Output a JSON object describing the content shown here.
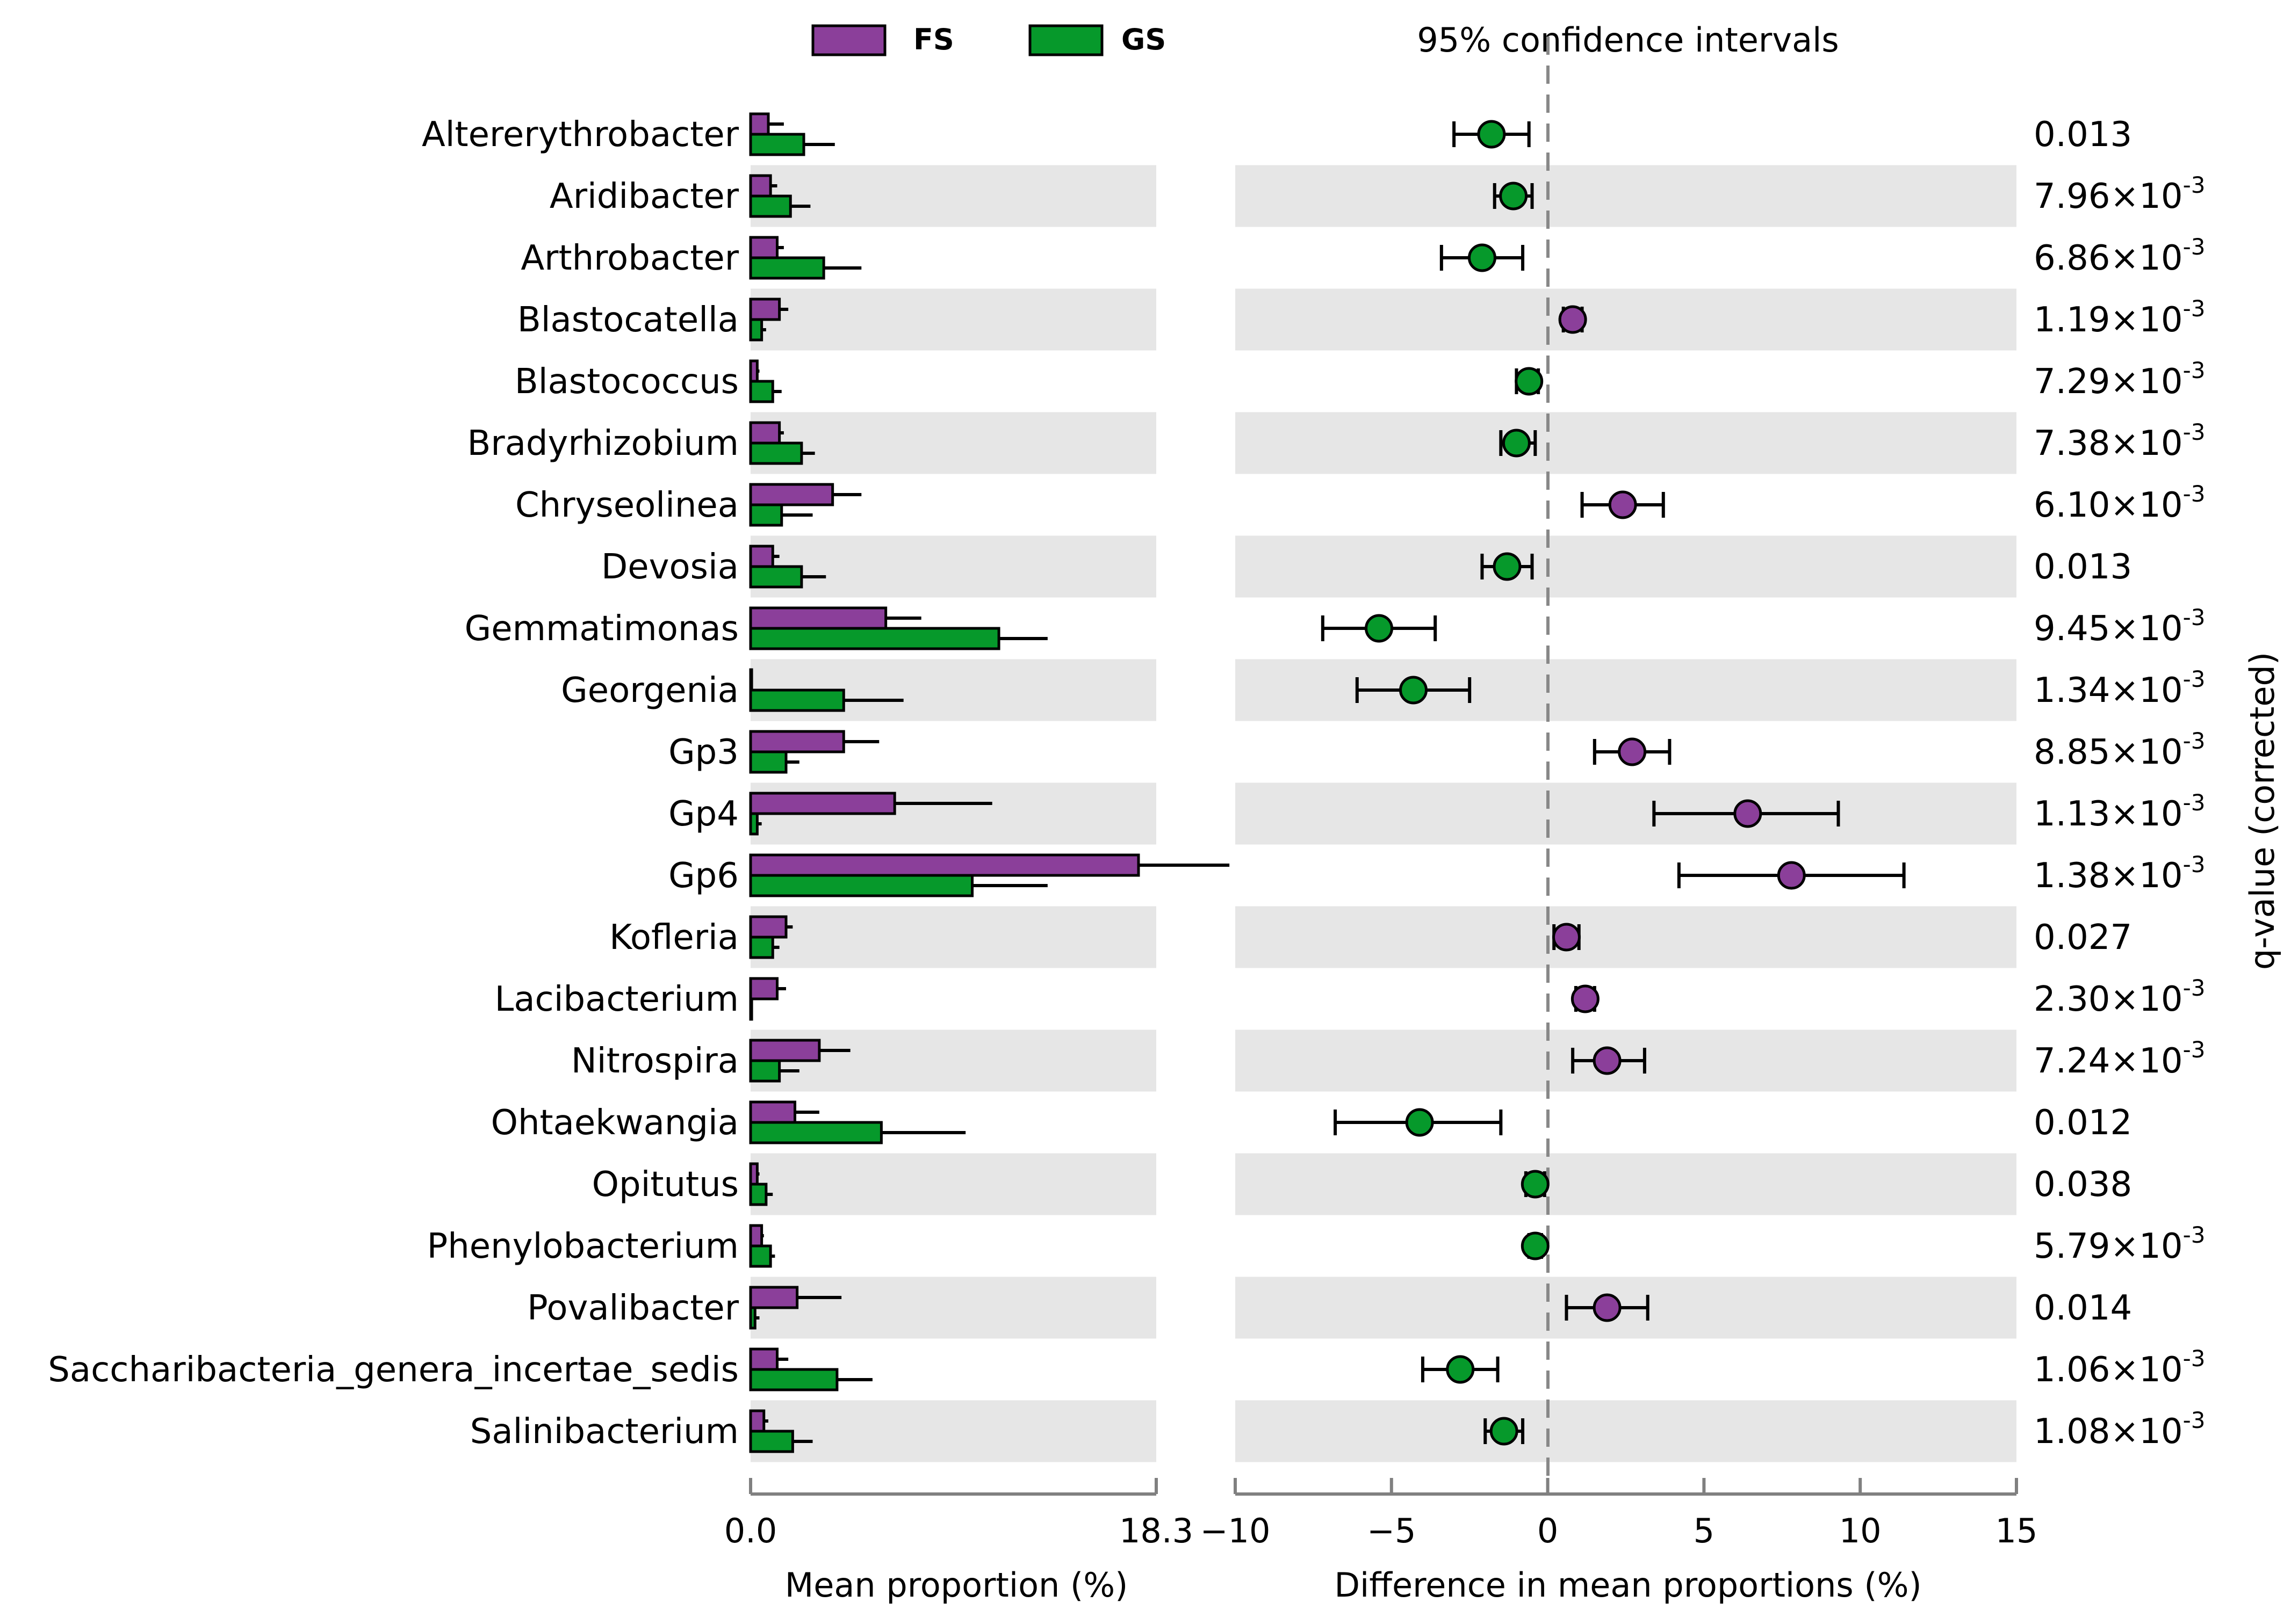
{
  "chart_data": {
    "type": "bar",
    "title": "95% confidence intervals",
    "legend": [
      {
        "name": "FS",
        "color": "#8B3F9A"
      },
      {
        "name": "GS",
        "color": "#06992B"
      }
    ],
    "bar_panel": {
      "xlabel": "Mean proportion (%)",
      "xlim": [
        0,
        18.3
      ],
      "tick_labels": [
        "0.0",
        "18.3"
      ]
    },
    "ci_panel": {
      "xlabel": "Difference in mean proportions (%)",
      "xlim": [
        -10,
        15
      ],
      "ticks": [
        -10,
        -5,
        0,
        5,
        10,
        15
      ],
      "tick_labels": [
        "−10",
        "−5",
        "0",
        "5",
        "10",
        "15"
      ]
    },
    "qvalue_label": "q-value (corrected)",
    "rows": [
      {
        "name": "Altererythrobacter",
        "fs": 0.8,
        "fs_err": 1.5,
        "gs": 2.4,
        "gs_err": 3.8,
        "diff": -1.8,
        "ci": [
          -3.0,
          -0.6
        ],
        "q_mant": "0.013",
        "q_exp": ""
      },
      {
        "name": "Aridibacter",
        "fs": 0.9,
        "fs_err": 1.2,
        "gs": 1.8,
        "gs_err": 2.7,
        "diff": -1.1,
        "ci": [
          -1.7,
          -0.5
        ],
        "q_mant": "7.96×10",
        "q_exp": "-3"
      },
      {
        "name": "Arthrobacter",
        "fs": 1.2,
        "fs_err": 1.5,
        "gs": 3.3,
        "gs_err": 5.0,
        "diff": -2.1,
        "ci": [
          -3.4,
          -0.8
        ],
        "q_mant": "6.86×10",
        "q_exp": "-3"
      },
      {
        "name": "Blastocatella",
        "fs": 1.3,
        "fs_err": 1.7,
        "gs": 0.5,
        "gs_err": 0.7,
        "diff": 0.8,
        "ci": [
          0.5,
          1.1
        ],
        "q_mant": "1.19×10",
        "q_exp": "-3"
      },
      {
        "name": "Blastococcus",
        "fs": 0.3,
        "fs_err": 0.4,
        "gs": 1.0,
        "gs_err": 1.4,
        "diff": -0.6,
        "ci": [
          -1.0,
          -0.3
        ],
        "q_mant": "7.29×10",
        "q_exp": "-3"
      },
      {
        "name": "Bradyrhizobium",
        "fs": 1.3,
        "fs_err": 1.5,
        "gs": 2.3,
        "gs_err": 2.9,
        "diff": -1.0,
        "ci": [
          -1.5,
          -0.4
        ],
        "q_mant": "7.38×10",
        "q_exp": "-3"
      },
      {
        "name": "Chryseolinea",
        "fs": 3.7,
        "fs_err": 5.0,
        "gs": 1.4,
        "gs_err": 2.8,
        "diff": 2.4,
        "ci": [
          1.1,
          3.7
        ],
        "q_mant": "6.10×10",
        "q_exp": "-3"
      },
      {
        "name": "Devosia",
        "fs": 1.0,
        "fs_err": 1.3,
        "gs": 2.3,
        "gs_err": 3.4,
        "diff": -1.3,
        "ci": [
          -2.1,
          -0.5
        ],
        "q_mant": "0.013",
        "q_exp": ""
      },
      {
        "name": "Gemmatimonas",
        "fs": 6.1,
        "fs_err": 7.7,
        "gs": 11.2,
        "gs_err": 13.4,
        "diff": -5.4,
        "ci": [
          -7.2,
          -3.6
        ],
        "q_mant": "9.45×10",
        "q_exp": "-3"
      },
      {
        "name": "Georgenia",
        "fs": 0.05,
        "fs_err": 0.1,
        "gs": 4.2,
        "gs_err": 6.9,
        "diff": -4.3,
        "ci": [
          -6.1,
          -2.5
        ],
        "q_mant": "1.34×10",
        "q_exp": "-3"
      },
      {
        "name": "Gp3",
        "fs": 4.2,
        "fs_err": 5.8,
        "gs": 1.6,
        "gs_err": 2.2,
        "diff": 2.7,
        "ci": [
          1.5,
          3.9
        ],
        "q_mant": "8.85×10",
        "q_exp": "-3"
      },
      {
        "name": "Gp4",
        "fs": 6.5,
        "fs_err": 10.9,
        "gs": 0.3,
        "gs_err": 0.5,
        "diff": 6.4,
        "ci": [
          3.4,
          9.3
        ],
        "q_mant": "1.13×10",
        "q_exp": "-3"
      },
      {
        "name": "Gp6",
        "fs": 17.5,
        "fs_err": 21.6,
        "gs": 10.0,
        "gs_err": 13.4,
        "diff": 7.8,
        "ci": [
          4.2,
          11.4
        ],
        "q_mant": "1.38×10",
        "q_exp": "-3"
      },
      {
        "name": "Kofleria",
        "fs": 1.6,
        "fs_err": 1.9,
        "gs": 1.0,
        "gs_err": 1.3,
        "diff": 0.6,
        "ci": [
          0.2,
          1.0
        ],
        "q_mant": "0.027",
        "q_exp": ""
      },
      {
        "name": "Lacibacterium",
        "fs": 1.2,
        "fs_err": 1.6,
        "gs": 0.05,
        "gs_err": 0.1,
        "diff": 1.2,
        "ci": [
          0.9,
          1.5
        ],
        "q_mant": "2.30×10",
        "q_exp": "-3"
      },
      {
        "name": "Nitrospira",
        "fs": 3.1,
        "fs_err": 4.5,
        "gs": 1.3,
        "gs_err": 2.2,
        "diff": 1.9,
        "ci": [
          0.8,
          3.1
        ],
        "q_mant": "7.24×10",
        "q_exp": "-3"
      },
      {
        "name": "Ohtaekwangia",
        "fs": 2.0,
        "fs_err": 3.1,
        "gs": 5.9,
        "gs_err": 9.7,
        "diff": -4.1,
        "ci": [
          -6.8,
          -1.5
        ],
        "q_mant": "0.012",
        "q_exp": ""
      },
      {
        "name": "Opitutus",
        "fs": 0.3,
        "fs_err": 0.4,
        "gs": 0.7,
        "gs_err": 1.0,
        "diff": -0.4,
        "ci": [
          -0.7,
          -0.1
        ],
        "q_mant": "0.038",
        "q_exp": ""
      },
      {
        "name": "Phenylobacterium",
        "fs": 0.5,
        "fs_err": 0.6,
        "gs": 0.9,
        "gs_err": 1.1,
        "diff": -0.4,
        "ci": [
          -0.6,
          -0.2
        ],
        "q_mant": "5.79×10",
        "q_exp": "-3"
      },
      {
        "name": "Povalibacter",
        "fs": 2.1,
        "fs_err": 4.1,
        "gs": 0.2,
        "gs_err": 0.4,
        "diff": 1.9,
        "ci": [
          0.6,
          3.2
        ],
        "q_mant": "0.014",
        "q_exp": ""
      },
      {
        "name": "Saccharibacteria_genera_incertae_sedis",
        "fs": 1.2,
        "fs_err": 1.7,
        "gs": 3.9,
        "gs_err": 5.5,
        "diff": -2.8,
        "ci": [
          -4.0,
          -1.6
        ],
        "q_mant": "1.06×10",
        "q_exp": "-3"
      },
      {
        "name": "Salinibacterium",
        "fs": 0.6,
        "fs_err": 0.8,
        "gs": 1.9,
        "gs_err": 2.8,
        "diff": -1.4,
        "ci": [
          -2.0,
          -0.8
        ],
        "q_mant": "1.08×10",
        "q_exp": "-3"
      }
    ]
  }
}
